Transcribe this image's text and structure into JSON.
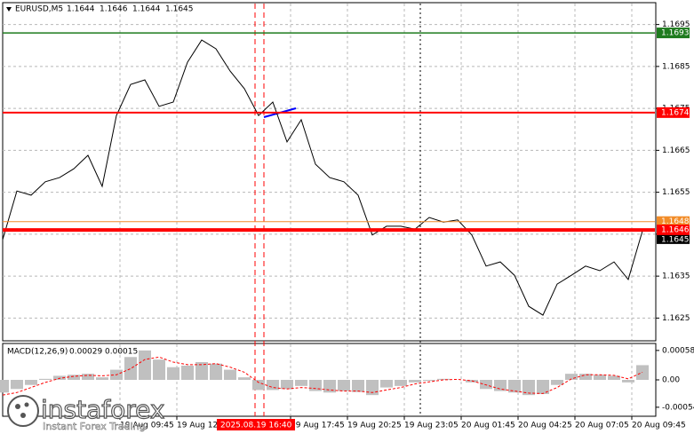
{
  "chart_data": [
    {
      "type": "line",
      "title": "EURUSD,M5",
      "ohlc": [
        1.1644,
        1.1646,
        1.1644,
        1.1645
      ],
      "color": "#000000",
      "x": [
        0,
        8,
        16,
        24,
        32,
        40,
        48,
        56,
        64,
        72,
        80,
        88,
        96,
        104,
        112,
        120,
        128,
        136,
        144,
        152,
        160,
        168,
        176,
        184,
        192,
        200,
        208,
        216,
        224,
        232,
        240,
        248,
        256,
        264,
        272,
        280,
        288,
        296,
        304,
        312,
        320,
        328,
        336,
        344,
        352,
        360
      ],
      "values": [
        1.16437,
        1.16553,
        1.16543,
        1.16575,
        1.16585,
        1.16606,
        1.16638,
        1.16564,
        1.16733,
        1.16807,
        1.16818,
        1.16755,
        1.16765,
        1.1686,
        1.16913,
        1.16892,
        1.16839,
        1.16797,
        1.16733,
        1.16765,
        1.1667,
        1.16723,
        1.16617,
        1.16585,
        1.16575,
        1.16543,
        1.16448,
        1.16469,
        1.16469,
        1.16462,
        1.1649,
        1.16479,
        1.16484,
        1.16448,
        1.16374,
        1.16384,
        1.16352,
        1.16278,
        1.16257,
        1.16331,
        1.16352,
        1.16374,
        1.16363,
        1.16384,
        1.16342,
        1.16458
      ],
      "xlim": [
        0,
        367
      ],
      "ylim": [
        1.162,
        1.17
      ],
      "yticks": [
        1.1625,
        1.1635,
        1.1645,
        1.1655,
        1.1665,
        1.1675,
        1.1685,
        1.1695
      ],
      "xticks": [
        {
          "value": 66,
          "label": "19 Aug 09:45"
        },
        {
          "value": 98,
          "label": "19 Aug 12:25"
        },
        {
          "value": 162,
          "label": "19 Aug 17:45"
        },
        {
          "value": 194,
          "label": "19 Aug 20:25"
        },
        {
          "value": 226,
          "label": "19 Aug 23:05"
        },
        {
          "value": 258,
          "label": "20 Aug 01:45"
        },
        {
          "value": 290,
          "label": "20 Aug 04:25"
        },
        {
          "value": 322,
          "label": "20 Aug 07:05"
        },
        {
          "value": 354,
          "label": "20 Aug 09:45"
        }
      ],
      "grid": true,
      "hlines": [
        {
          "value": 1.1693,
          "color": "#1e7b1e",
          "width": 1.5
        },
        {
          "value": 1.1674,
          "color": "#ff0000",
          "width": 2
        },
        {
          "value": 1.1648,
          "color": "#f28c28",
          "width": 1
        },
        {
          "value": 1.1646,
          "color": "#ff0000",
          "width": 4
        }
      ],
      "last_price": 1.1645,
      "vlines": [
        {
          "value": 142,
          "color": "#ff0000"
        },
        {
          "value": 147,
          "color": "#ff0000"
        }
      ],
      "time_marker": {
        "value": 147,
        "label": "2025.08.19 16:40"
      },
      "watermark": {
        "brand": "instaforex",
        "slogan": "Instant Forex Trading"
      }
    },
    {
      "type": "macd",
      "title": "MACD(12,26,9)",
      "header_values": [
        0.00029,
        0.00015
      ],
      "ylim": [
        -0.0007,
        0.0007
      ],
      "yticks": [
        0.00058,
        {
          "value": 0,
          "label": "0.00"
        },
        -0.00054
      ],
      "series": [
        {
          "kind": "bar",
          "color": "#c0c0c0",
          "values": [
            -0.00025,
            -0.00018,
            -0.0001,
            2e-05,
            8e-05,
            0.0001,
            0.00012,
            5e-05,
            0.0002,
            0.00045,
            0.00058,
            0.0004,
            0.00025,
            0.00028,
            0.00035,
            0.00032,
            0.0002,
            5e-05,
            -0.0002,
            -0.0002,
            -0.00018,
            -0.00012,
            -0.00022,
            -0.00025,
            -0.00022,
            -0.00024,
            -0.0003,
            -0.00015,
            -0.00012,
            -5e-05,
            -2e-05,
            2e-05,
            0,
            -5e-05,
            -0.00018,
            -0.00022,
            -0.00025,
            -0.0003,
            -0.00028,
            -0.0001,
            0.00012,
            0.00012,
            0.0001,
            8e-05,
            -5e-05,
            0.00029
          ]
        },
        {
          "kind": "line",
          "color": "#ff0000",
          "values": [
            -0.0003,
            -0.00025,
            -0.00015,
            -5e-05,
            3e-05,
            7e-05,
            9e-05,
            8e-05,
            0.0001,
            0.00022,
            0.0004,
            0.00045,
            0.00035,
            0.0003,
            0.0003,
            0.00032,
            0.00025,
            0.00015,
            -5e-05,
            -0.00015,
            -0.00018,
            -0.00015,
            -0.00017,
            -0.0002,
            -0.00022,
            -0.00022,
            -0.00025,
            -0.0002,
            -0.00015,
            -8e-05,
            -4e-05,
            0,
            1e-05,
            -2e-05,
            -0.0001,
            -0.00018,
            -0.00022,
            -0.00026,
            -0.00027,
            -0.00015,
            2e-05,
            0.0001,
            0.0001,
            9e-05,
            2e-05,
            0.00015
          ]
        }
      ]
    }
  ]
}
